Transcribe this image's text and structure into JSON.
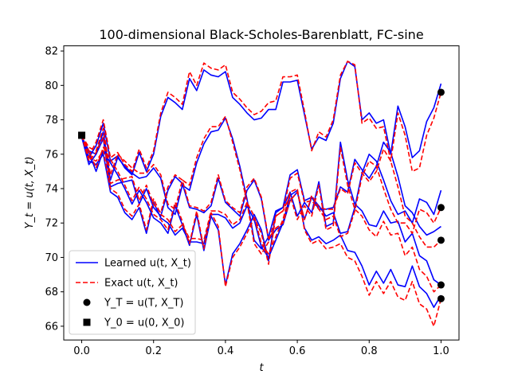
{
  "chart_data": {
    "type": "line",
    "title": "100-dimensional Black-Scholes-Barenblatt, FC-sine",
    "xlabel": "t",
    "ylabel": "Y_t = u(t, X_t)",
    "xlim": [
      -0.05,
      1.05
    ],
    "ylim": [
      65.2,
      82.3
    ],
    "xticks": [
      0.0,
      0.2,
      0.4,
      0.6,
      0.8,
      1.0
    ],
    "xtick_labels": [
      "0.0",
      "0.2",
      "0.4",
      "0.6",
      "0.8",
      "1.0"
    ],
    "yticks": [
      66,
      68,
      70,
      72,
      74,
      76,
      78,
      80,
      82
    ],
    "ytick_labels": [
      "66",
      "68",
      "70",
      "72",
      "74",
      "76",
      "78",
      "80",
      "82"
    ],
    "grid": false,
    "legend_position": "lower-left",
    "legend": [
      {
        "label": "Learned u(t, X_t)",
        "style": "solid",
        "color": "#0000ff"
      },
      {
        "label": "Exact u(t, X_t)",
        "style": "dashed",
        "color": "#ff0000"
      },
      {
        "label": "Y_T = u(T, X_T)",
        "marker": "circle",
        "color": "#000000"
      },
      {
        "label": "Y_0 = u(0, X_0)",
        "marker": "square",
        "color": "#000000"
      }
    ],
    "x": [
      0.0,
      0.02,
      0.04,
      0.06,
      0.08,
      0.1,
      0.12,
      0.14,
      0.16,
      0.18,
      0.2,
      0.22,
      0.24,
      0.26,
      0.28,
      0.3,
      0.32,
      0.34,
      0.36,
      0.38,
      0.4,
      0.42,
      0.44,
      0.46,
      0.48,
      0.5,
      0.52,
      0.54,
      0.56,
      0.58,
      0.6,
      0.62,
      0.64,
      0.66,
      0.68,
      0.7,
      0.72,
      0.74,
      0.76,
      0.78,
      0.8,
      0.82,
      0.84,
      0.86,
      0.88,
      0.9,
      0.92,
      0.94,
      0.96,
      0.98,
      1.0
    ],
    "series": [
      {
        "learned": [
          77.0,
          75.8,
          76.5,
          77.8,
          75.6,
          75.9,
          75.2,
          74.8,
          76.1,
          75.0,
          76.0,
          78.2,
          79.3,
          79.0,
          78.6,
          80.4,
          79.7,
          80.9,
          80.6,
          80.5,
          80.8,
          79.3,
          78.9,
          78.4,
          78.0,
          78.1,
          78.6,
          78.6,
          80.2,
          80.2,
          80.3,
          78.3,
          76.3,
          77.0,
          76.8,
          77.8,
          80.4,
          81.4,
          81.1,
          78.0,
          78.4,
          77.8,
          78.0,
          76.0,
          78.8,
          77.6,
          75.8,
          76.2,
          77.9,
          78.7,
          80.1
        ],
        "exact": [
          77.1,
          75.9,
          76.7,
          78.0,
          75.8,
          76.1,
          75.4,
          75.0,
          76.3,
          75.2,
          76.2,
          78.4,
          79.6,
          79.3,
          78.9,
          80.8,
          80.0,
          81.3,
          81.0,
          80.9,
          81.2,
          79.6,
          79.2,
          78.7,
          78.3,
          78.5,
          79.0,
          79.1,
          80.5,
          80.5,
          80.6,
          78.5,
          76.2,
          77.3,
          77.0,
          78.0,
          80.6,
          81.4,
          81.2,
          77.8,
          78.1,
          77.5,
          77.6,
          75.6,
          78.4,
          77.1,
          75.0,
          75.2,
          77.1,
          78.1,
          79.6
        ],
        "terminal": 79.6
      },
      {
        "learned": [
          77.0,
          76.2,
          76.0,
          77.3,
          74.5,
          75.8,
          75.3,
          74.9,
          74.6,
          74.7,
          75.2,
          74.6,
          72.9,
          72.5,
          74.2,
          73.9,
          75.5,
          76.6,
          77.3,
          77.4,
          78.1,
          76.9,
          75.3,
          73.4,
          71.0,
          70.5,
          71.2,
          72.7,
          72.9,
          74.8,
          75.1,
          73.3,
          73.5,
          73.0,
          72.4,
          72.6,
          71.4,
          71.5,
          72.9,
          74.9,
          76.0,
          75.6,
          74.5,
          73.3,
          72.5,
          72.7,
          72.0,
          73.4,
          73.2,
          72.5,
          73.9
        ],
        "exact": [
          77.1,
          76.4,
          76.2,
          77.5,
          74.8,
          76.0,
          75.6,
          75.2,
          74.9,
          74.9,
          75.4,
          74.8,
          73.1,
          72.8,
          74.5,
          74.2,
          75.8,
          76.9,
          77.6,
          77.6,
          78.2,
          76.7,
          75.1,
          73.2,
          70.8,
          70.2,
          70.9,
          72.4,
          72.7,
          74.6,
          74.9,
          73.2,
          73.3,
          72.8,
          72.2,
          72.4,
          71.2,
          71.4,
          72.7,
          74.7,
          75.6,
          75.3,
          74.0,
          72.8,
          72.0,
          72.0,
          71.4,
          72.8,
          72.6,
          72.0,
          72.9
        ],
        "terminal": 72.9
      },
      {
        "learned": [
          77.0,
          75.4,
          76.0,
          76.9,
          74.1,
          74.3,
          74.4,
          74.5,
          73.1,
          74.0,
          72.9,
          72.4,
          73.9,
          74.7,
          74.3,
          72.9,
          72.8,
          72.6,
          73.0,
          74.6,
          73.2,
          72.8,
          72.4,
          73.9,
          74.5,
          73.4,
          71.0,
          71.6,
          71.9,
          73.3,
          73.8,
          72.2,
          73.5,
          72.8,
          72.8,
          72.9,
          74.1,
          73.8,
          75.7,
          75.1,
          74.6,
          75.3,
          76.7,
          76.1,
          74.7,
          73.0,
          72.6,
          71.8,
          71.3,
          71.5,
          71.8
        ],
        "exact": [
          77.1,
          75.6,
          76.1,
          77.0,
          74.3,
          74.5,
          74.6,
          74.7,
          73.3,
          74.2,
          73.1,
          72.6,
          74.1,
          74.8,
          74.5,
          73.0,
          72.9,
          72.7,
          73.2,
          74.8,
          73.3,
          72.9,
          72.6,
          74.1,
          74.6,
          73.5,
          71.1,
          71.7,
          72.0,
          73.3,
          73.8,
          72.2,
          73.6,
          72.9,
          72.8,
          72.8,
          74.0,
          73.7,
          75.5,
          74.9,
          74.4,
          75.0,
          76.3,
          75.6,
          74.1,
          72.4,
          72.0,
          71.2,
          70.6,
          70.6,
          71.0
        ],
        "terminal": 71.0
      },
      {
        "learned": [
          77.0,
          76.1,
          75.0,
          76.2,
          75.5,
          74.8,
          74.0,
          73.1,
          73.9,
          73.2,
          72.3,
          72.0,
          71.4,
          73.0,
          71.9,
          70.7,
          72.5,
          70.4,
          72.4,
          71.6,
          68.4,
          70.2,
          70.8,
          71.6,
          72.5,
          71.6,
          69.8,
          72.6,
          72.9,
          73.8,
          72.4,
          73.2,
          72.6,
          74.4,
          71.8,
          72.0,
          76.7,
          74.5,
          73.1,
          72.7,
          71.9,
          71.8,
          72.7,
          72.0,
          72.1,
          70.9,
          71.4,
          70.1,
          69.8,
          68.7,
          68.4
        ],
        "exact": [
          77.1,
          76.2,
          75.2,
          76.4,
          75.7,
          75.0,
          74.2,
          73.3,
          74.1,
          73.4,
          72.5,
          72.2,
          71.6,
          73.2,
          72.1,
          70.8,
          72.7,
          70.5,
          72.6,
          71.8,
          68.3,
          70.0,
          70.6,
          71.4,
          72.3,
          71.4,
          69.6,
          72.4,
          72.7,
          73.6,
          72.2,
          73.0,
          72.4,
          74.2,
          71.6,
          71.8,
          76.4,
          74.2,
          72.8,
          72.4,
          71.6,
          71.2,
          72.1,
          71.3,
          71.4,
          70.1,
          70.6,
          69.3,
          68.9,
          68.0,
          68.4
        ],
        "terminal": 68.4
      },
      {
        "learned": [
          77.0,
          75.6,
          75.4,
          76.0,
          73.8,
          73.5,
          72.6,
          72.2,
          72.9,
          71.4,
          73.2,
          72.3,
          72.0,
          71.3,
          71.7,
          70.9,
          70.9,
          70.8,
          72.5,
          72.5,
          72.3,
          71.7,
          72.0,
          73.0,
          72.2,
          70.6,
          70.0,
          71.0,
          72.0,
          73.6,
          73.9,
          71.7,
          71.0,
          71.2,
          70.8,
          71.0,
          71.3,
          70.4,
          70.3,
          69.5,
          68.4,
          69.2,
          68.5,
          69.3,
          68.4,
          68.3,
          69.5,
          68.3,
          67.9,
          67.1,
          67.8
        ],
        "exact": [
          77.1,
          75.8,
          75.6,
          76.2,
          74.0,
          73.7,
          72.8,
          72.4,
          73.1,
          71.6,
          73.4,
          72.5,
          72.2,
          71.5,
          71.9,
          71.1,
          71.1,
          71.0,
          72.7,
          72.7,
          72.5,
          71.9,
          72.2,
          73.2,
          72.4,
          70.8,
          70.2,
          71.2,
          72.2,
          73.8,
          74.0,
          71.6,
          70.8,
          71.0,
          70.5,
          70.6,
          70.8,
          70.0,
          69.8,
          68.9,
          67.8,
          68.6,
          67.9,
          68.6,
          67.7,
          67.5,
          68.6,
          67.3,
          67.0,
          66.0,
          67.6
        ],
        "terminal": 67.6
      }
    ],
    "initial_point": {
      "x": 0.0,
      "y": 77.1
    }
  }
}
